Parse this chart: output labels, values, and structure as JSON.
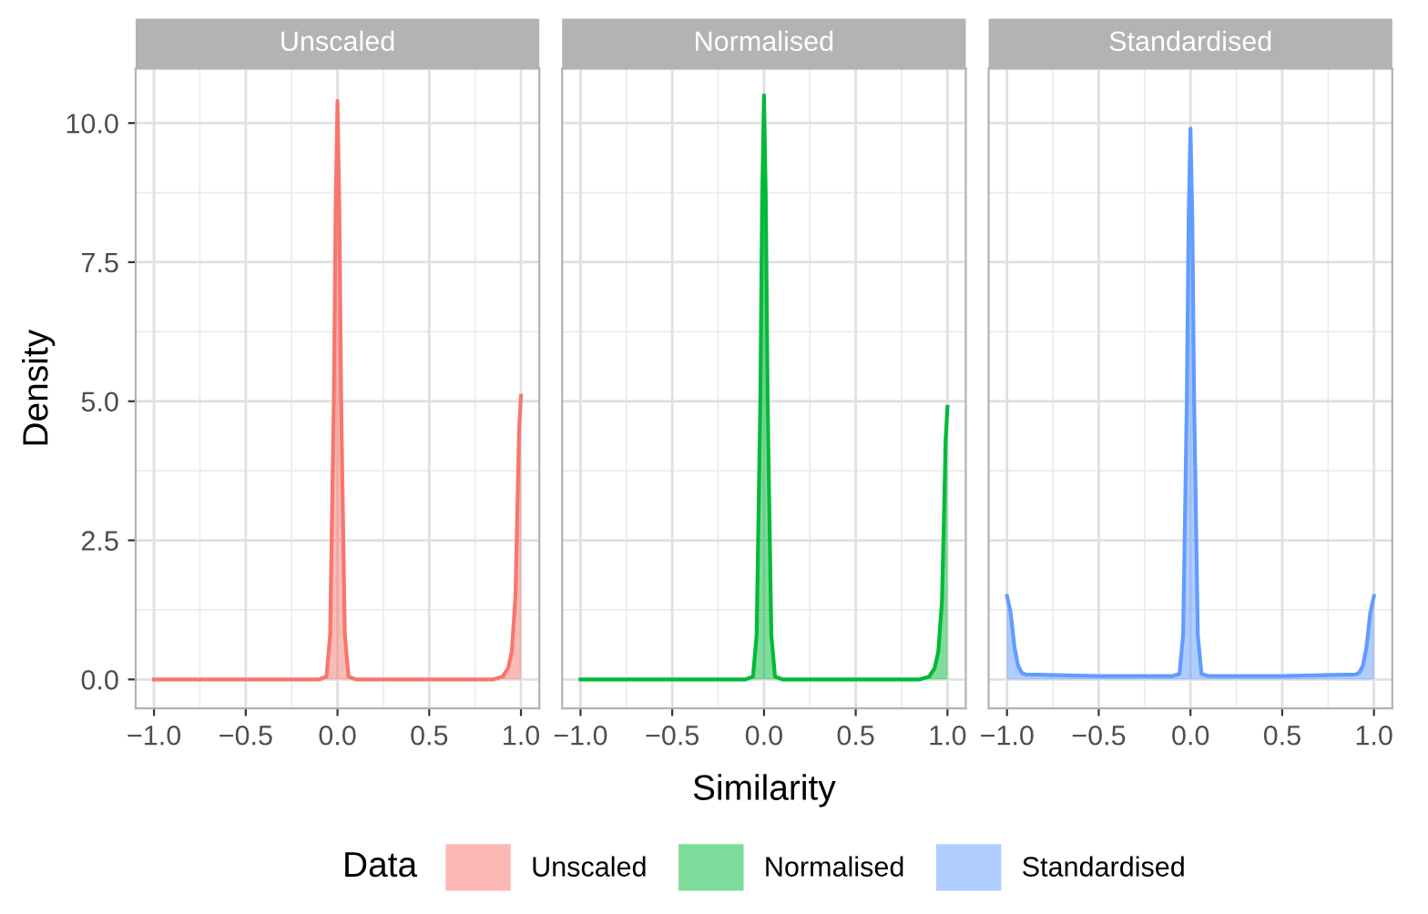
{
  "chart_data": [
    {
      "type": "area",
      "title": "Unscaled",
      "ylabel": "Density",
      "xlim": [
        -1.1,
        1.1
      ],
      "ylim": [
        -0.52,
        10.98
      ],
      "xticks": [
        {
          "value": -1.0,
          "label": "−1.0"
        },
        {
          "value": -0.5,
          "label": "−0.5"
        },
        {
          "value": 0.0,
          "label": "0.0"
        },
        {
          "value": 0.5,
          "label": "0.5"
        },
        {
          "value": 1.0,
          "label": "1.0"
        }
      ],
      "yticks": [
        {
          "value": 0.0,
          "label": "0.0"
        },
        {
          "value": 2.5,
          "label": "2.5"
        },
        {
          "value": 5.0,
          "label": "5.0"
        },
        {
          "value": 7.5,
          "label": "7.5"
        },
        {
          "value": 10.0,
          "label": "10.0"
        }
      ],
      "grid": true,
      "legend": "bottom",
      "series": [
        {
          "name": "Unscaled",
          "color": "#f8766d",
          "x": [
            -1,
            -0.5,
            -0.1,
            -0.06,
            -0.04,
            -0.02,
            -0.01,
            0,
            0.01,
            0.02,
            0.04,
            0.06,
            0.1,
            0.5,
            0.85,
            0.9,
            0.93,
            0.95,
            0.97,
            0.98,
            0.99,
            1.0
          ],
          "values": [
            0,
            0,
            0,
            0.05,
            0.8,
            5,
            8.5,
            10.4,
            8.5,
            5,
            0.8,
            0.05,
            0,
            0,
            0,
            0.05,
            0.2,
            0.5,
            1.5,
            3,
            4.5,
            5.1
          ]
        }
      ]
    },
    {
      "type": "area",
      "title": "Normalised",
      "xlabel": "Similarity",
      "legend_title": "Data",
      "xlim": [
        -1.1,
        1.1
      ],
      "ylim": [
        -0.52,
        10.98
      ],
      "xticks": [
        {
          "value": -1.0,
          "label": "−1.0"
        },
        {
          "value": -0.5,
          "label": "−0.5"
        },
        {
          "value": 0.0,
          "label": "0.0"
        },
        {
          "value": 0.5,
          "label": "0.5"
        },
        {
          "value": 1.0,
          "label": "1.0"
        }
      ],
      "yticks": [
        {
          "value": 0.0,
          "label": null
        },
        {
          "value": 2.5,
          "label": null
        },
        {
          "value": 5.0,
          "label": null
        },
        {
          "value": 7.5,
          "label": null
        },
        {
          "value": 10.0,
          "label": null
        }
      ],
      "tick_labels": "x",
      "grid": true,
      "legend": "bottom",
      "series": [
        {
          "name": "Normalised",
          "color": "#00ba38",
          "x": [
            -1,
            -0.5,
            -0.1,
            -0.06,
            -0.04,
            -0.02,
            -0.01,
            0,
            0.01,
            0.02,
            0.04,
            0.06,
            0.1,
            0.5,
            0.85,
            0.9,
            0.93,
            0.95,
            0.97,
            0.98,
            0.99,
            1.0
          ],
          "values": [
            0,
            0,
            0,
            0.05,
            0.8,
            5,
            8.6,
            10.5,
            8.6,
            5,
            0.8,
            0.05,
            0,
            0,
            0,
            0.05,
            0.2,
            0.5,
            1.4,
            2.8,
            4.3,
            4.9
          ]
        }
      ]
    },
    {
      "type": "area",
      "title": "Standardised",
      "xlim": [
        -1.1,
        1.1
      ],
      "ylim": [
        -0.52,
        10.98
      ],
      "xticks": [
        {
          "value": -1.0,
          "label": "−1.0"
        },
        {
          "value": -0.5,
          "label": "−0.5"
        },
        {
          "value": 0.0,
          "label": "0.0"
        },
        {
          "value": 0.5,
          "label": "0.5"
        },
        {
          "value": 1.0,
          "label": "1.0"
        }
      ],
      "yticks": [
        {
          "value": 0.0,
          "label": null
        },
        {
          "value": 2.5,
          "label": null
        },
        {
          "value": 5.0,
          "label": null
        },
        {
          "value": 7.5,
          "label": null
        },
        {
          "value": 10.0,
          "label": null
        }
      ],
      "tick_labels": "x",
      "grid": true,
      "legend": "bottom",
      "series": [
        {
          "name": "Standardised",
          "color": "#619cff",
          "x": [
            -1,
            -0.98,
            -0.96,
            -0.94,
            -0.92,
            -0.9,
            -0.5,
            -0.1,
            -0.06,
            -0.04,
            -0.02,
            -0.01,
            0,
            0.01,
            0.02,
            0.04,
            0.06,
            0.1,
            0.5,
            0.9,
            0.92,
            0.94,
            0.96,
            0.98,
            1.0
          ],
          "values": [
            1.5,
            1.2,
            0.6,
            0.25,
            0.12,
            0.09,
            0.06,
            0.06,
            0.1,
            0.8,
            5,
            8.3,
            9.9,
            8.3,
            5,
            0.8,
            0.1,
            0.06,
            0.06,
            0.09,
            0.12,
            0.25,
            0.6,
            1.2,
            1.5
          ]
        }
      ]
    }
  ]
}
